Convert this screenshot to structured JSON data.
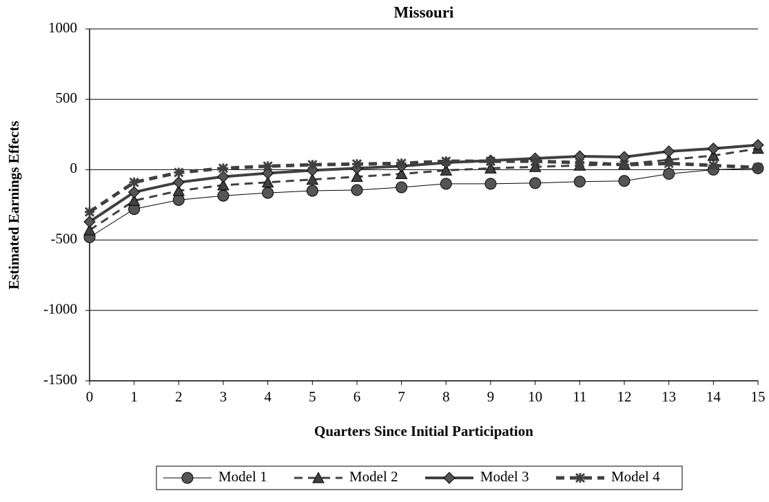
{
  "chart_data": {
    "type": "line",
    "title": "Missouri",
    "x_label": "Quarters Since Initial Participation",
    "y_label": "Estimated Earnings Effects",
    "x": [
      0,
      1,
      2,
      3,
      4,
      5,
      6,
      7,
      8,
      9,
      10,
      11,
      12,
      13,
      14,
      15
    ],
    "xlim": [
      0,
      15
    ],
    "xticks": [
      0,
      1,
      2,
      3,
      4,
      5,
      6,
      7,
      8,
      9,
      10,
      11,
      12,
      13,
      14,
      15
    ],
    "ylim": [
      -1500,
      1000
    ],
    "yticks": [
      -1500,
      -1000,
      -500,
      0,
      500,
      1000
    ],
    "grid": true,
    "legend": "bottom",
    "series": [
      {
        "name": "Model 1",
        "color": "#000000",
        "marker_color": "#555555",
        "marker": "circle",
        "line_style": "solid",
        "line_width": 1,
        "values": [
          -480,
          -280,
          -215,
          -185,
          -165,
          -150,
          -145,
          -125,
          -100,
          -100,
          -95,
          -85,
          -80,
          -30,
          0,
          10
        ]
      },
      {
        "name": "Model 2",
        "color": "#404040",
        "marker_color": "#404040",
        "marker": "triangle",
        "line_style": "dashed",
        "line_width": 3,
        "values": [
          -430,
          -220,
          -150,
          -110,
          -90,
          -70,
          -50,
          -30,
          -5,
          10,
          20,
          30,
          40,
          70,
          100,
          150
        ]
      },
      {
        "name": "Model 3",
        "color": "#404040",
        "marker_color": "#555555",
        "marker": "diamond",
        "line_style": "solid",
        "line_width": 4,
        "values": [
          -370,
          -160,
          -90,
          -50,
          -25,
          -5,
          10,
          25,
          50,
          65,
          80,
          95,
          90,
          130,
          150,
          175
        ]
      },
      {
        "name": "Model 4",
        "color": "#404040",
        "marker_color": "#404040",
        "marker": "star",
        "line_style": "dashed",
        "line_width": 5,
        "values": [
          -300,
          -90,
          -20,
          10,
          25,
          35,
          40,
          45,
          60,
          60,
          60,
          50,
          35,
          45,
          30,
          15
        ]
      }
    ]
  }
}
